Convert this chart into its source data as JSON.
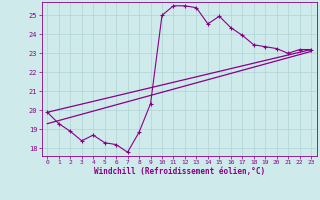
{
  "xlabel": "Windchill (Refroidissement éolien,°C)",
  "background_color": "#ceeaea",
  "line_color": "#880088",
  "grid_color": "#b0d4d4",
  "ylim": [
    17.6,
    25.7
  ],
  "xlim": [
    -0.5,
    23.5
  ],
  "yticks": [
    18,
    19,
    20,
    21,
    22,
    23,
    24,
    25
  ],
  "xticks": [
    0,
    1,
    2,
    3,
    4,
    5,
    6,
    7,
    8,
    9,
    10,
    11,
    12,
    13,
    14,
    15,
    16,
    17,
    18,
    19,
    20,
    21,
    22,
    23
  ],
  "line1_x": [
    0,
    1,
    2,
    3,
    4,
    5,
    6,
    7,
    8,
    9,
    10,
    11,
    12,
    13,
    14,
    15,
    16,
    17,
    18,
    19,
    20,
    21,
    22,
    23
  ],
  "line1_y": [
    19.9,
    19.3,
    18.9,
    18.4,
    18.7,
    18.3,
    18.2,
    17.8,
    18.85,
    20.35,
    25.0,
    25.5,
    25.5,
    25.4,
    24.55,
    24.95,
    24.35,
    23.95,
    23.45,
    23.35,
    23.25,
    23.0,
    23.2,
    23.2
  ],
  "line2_x": [
    0,
    23
  ],
  "line2_y": [
    19.3,
    23.1
  ],
  "line3_x": [
    0,
    23
  ],
  "line3_y": [
    19.9,
    23.2
  ]
}
